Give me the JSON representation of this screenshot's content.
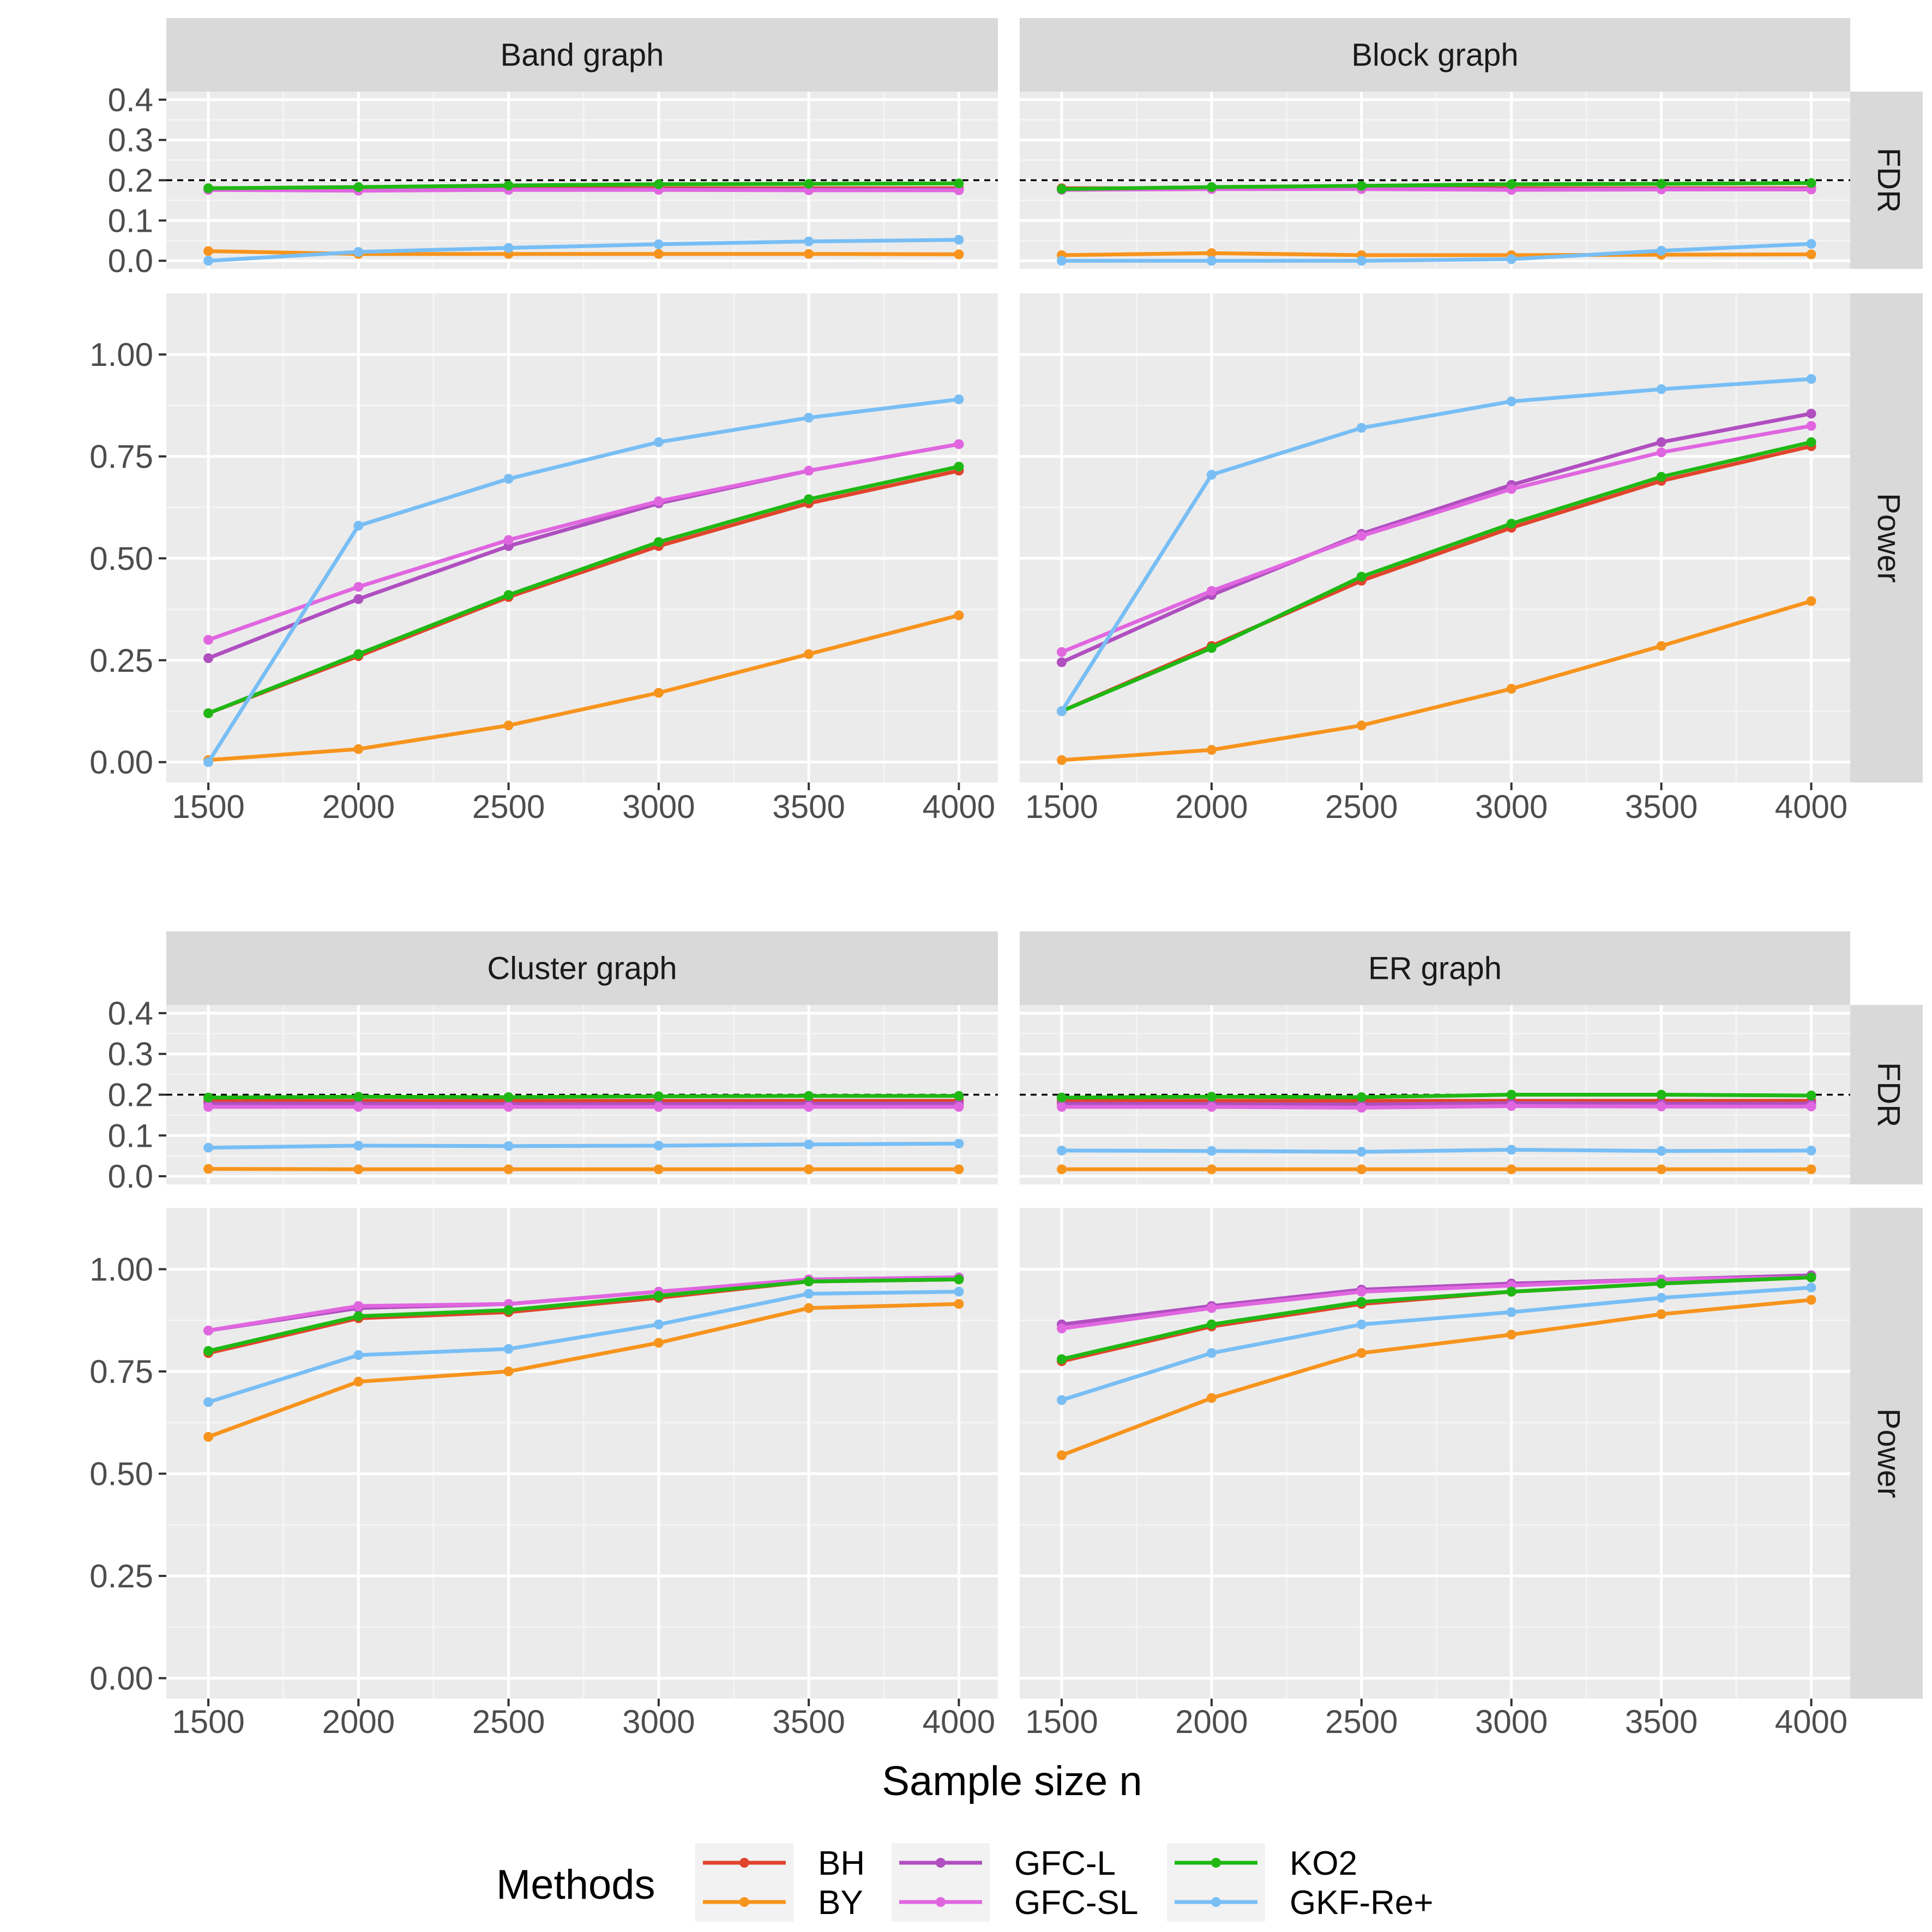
{
  "chart_data": {
    "type": "line",
    "x": [
      1500,
      2000,
      2500,
      3000,
      3500,
      4000
    ],
    "xlabel": "Sample size n",
    "x_ticks": [
      "1500",
      "2000",
      "2500",
      "3000",
      "3500",
      "4000"
    ],
    "xlim": [
      1360,
      4130
    ],
    "fdr_reference_line": 0.2,
    "rows": [
      {
        "name": "FDR",
        "ylim": [
          -0.02,
          0.42
        ],
        "ticks": [
          0,
          0.1,
          0.2,
          0.3,
          0.4
        ],
        "tick_labels": [
          "0.0",
          "0.1",
          "0.2",
          "0.3",
          "0.4"
        ]
      },
      {
        "name": "Power",
        "ylim": [
          -0.05,
          1.15
        ],
        "ticks": [
          0,
          0.25,
          0.5,
          0.75,
          1.0
        ],
        "tick_labels": [
          "0.00",
          "0.25",
          "0.50",
          "0.75",
          "1.00"
        ]
      }
    ],
    "legend": {
      "title": "Methods",
      "position": "bottom",
      "entries": [
        {
          "name": "BH",
          "color": "#E0442C"
        },
        {
          "name": "BY",
          "color": "#F7941D"
        },
        {
          "name": "GFC-L",
          "color": "#B04FC0"
        },
        {
          "name": "GFC-SL",
          "color": "#E066E0"
        },
        {
          "name": "KO2",
          "color": "#1FB814"
        },
        {
          "name": "GKF-Re+",
          "color": "#78BEF5"
        }
      ]
    },
    "panels": [
      {
        "title": "Band graph",
        "fdr": [
          {
            "name": "BH",
            "values": [
              0.18,
              0.18,
              0.18,
              0.18,
              0.18,
              0.18
            ]
          },
          {
            "name": "BY",
            "values": [
              0.024,
              0.017,
              0.017,
              0.017,
              0.017,
              0.016
            ]
          },
          {
            "name": "GFC-L",
            "values": [
              0.178,
              0.176,
              0.177,
              0.177,
              0.177,
              0.177
            ]
          },
          {
            "name": "GFC-SL",
            "values": [
              0.176,
              0.174,
              0.176,
              0.176,
              0.175,
              0.175
            ]
          },
          {
            "name": "KO2",
            "values": [
              0.18,
              0.183,
              0.187,
              0.19,
              0.191,
              0.192
            ]
          },
          {
            "name": "GKF-Re+",
            "values": [
              0.0,
              0.022,
              0.032,
              0.041,
              0.048,
              0.052
            ]
          }
        ],
        "power": [
          {
            "name": "BH",
            "values": [
              0.12,
              0.26,
              0.405,
              0.53,
              0.635,
              0.715
            ]
          },
          {
            "name": "BY",
            "values": [
              0.005,
              0.032,
              0.09,
              0.17,
              0.265,
              0.36
            ]
          },
          {
            "name": "GFC-L",
            "values": [
              0.255,
              0.4,
              0.53,
              0.635,
              0.715,
              0.78
            ]
          },
          {
            "name": "GFC-SL",
            "values": [
              0.3,
              0.43,
              0.545,
              0.64,
              0.715,
              0.78
            ]
          },
          {
            "name": "KO2",
            "values": [
              0.12,
              0.265,
              0.41,
              0.54,
              0.645,
              0.725
            ]
          },
          {
            "name": "GKF-Re+",
            "values": [
              0.0,
              0.58,
              0.695,
              0.785,
              0.845,
              0.89
            ]
          }
        ]
      },
      {
        "title": "Block graph",
        "fdr": [
          {
            "name": "BH",
            "values": [
              0.18,
              0.18,
              0.18,
              0.18,
              0.18,
              0.18
            ]
          },
          {
            "name": "BY",
            "values": [
              0.014,
              0.019,
              0.014,
              0.014,
              0.015,
              0.016
            ]
          },
          {
            "name": "GFC-L",
            "values": [
              0.178,
              0.179,
              0.18,
              0.177,
              0.178,
              0.178
            ]
          },
          {
            "name": "GFC-SL",
            "values": [
              0.176,
              0.178,
              0.178,
              0.176,
              0.177,
              0.177
            ]
          },
          {
            "name": "KO2",
            "values": [
              0.178,
              0.183,
              0.186,
              0.19,
              0.191,
              0.193
            ]
          },
          {
            "name": "GKF-Re+",
            "values": [
              0.0,
              0.0,
              0.0,
              0.004,
              0.025,
              0.042
            ]
          }
        ],
        "power": [
          {
            "name": "BH",
            "values": [
              0.125,
              0.285,
              0.445,
              0.575,
              0.69,
              0.775
            ]
          },
          {
            "name": "BY",
            "values": [
              0.005,
              0.03,
              0.09,
              0.18,
              0.285,
              0.395
            ]
          },
          {
            "name": "GFC-L",
            "values": [
              0.245,
              0.41,
              0.56,
              0.68,
              0.785,
              0.855
            ]
          },
          {
            "name": "GFC-SL",
            "values": [
              0.27,
              0.42,
              0.555,
              0.67,
              0.76,
              0.825
            ]
          },
          {
            "name": "KO2",
            "values": [
              0.125,
              0.28,
              0.455,
              0.585,
              0.7,
              0.785
            ]
          },
          {
            "name": "GKF-Re+",
            "values": [
              0.125,
              0.705,
              0.82,
              0.885,
              0.915,
              0.94
            ]
          }
        ]
      },
      {
        "title": "Cluster graph",
        "fdr": [
          {
            "name": "BH",
            "values": [
              0.185,
              0.185,
              0.185,
              0.185,
              0.185,
              0.185
            ]
          },
          {
            "name": "BY",
            "values": [
              0.018,
              0.017,
              0.017,
              0.017,
              0.017,
              0.017
            ]
          },
          {
            "name": "GFC-L",
            "values": [
              0.178,
              0.178,
              0.177,
              0.177,
              0.178,
              0.178
            ]
          },
          {
            "name": "GFC-SL",
            "values": [
              0.17,
              0.17,
              0.17,
              0.17,
              0.17,
              0.17
            ]
          },
          {
            "name": "KO2",
            "values": [
              0.193,
              0.195,
              0.194,
              0.196,
              0.197,
              0.197
            ]
          },
          {
            "name": "GKF-Re+",
            "values": [
              0.07,
              0.075,
              0.074,
              0.075,
              0.078,
              0.08
            ]
          }
        ],
        "power": [
          {
            "name": "BH",
            "values": [
              0.795,
              0.88,
              0.895,
              0.93,
              0.97,
              0.975
            ]
          },
          {
            "name": "BY",
            "values": [
              0.59,
              0.725,
              0.75,
              0.82,
              0.905,
              0.915
            ]
          },
          {
            "name": "GFC-L",
            "values": [
              0.85,
              0.905,
              0.915,
              0.945,
              0.975,
              0.98
            ]
          },
          {
            "name": "GFC-SL",
            "values": [
              0.85,
              0.91,
              0.915,
              0.945,
              0.975,
              0.98
            ]
          },
          {
            "name": "KO2",
            "values": [
              0.8,
              0.885,
              0.9,
              0.935,
              0.97,
              0.975
            ]
          },
          {
            "name": "GKF-Re+",
            "values": [
              0.675,
              0.79,
              0.805,
              0.865,
              0.94,
              0.945
            ]
          }
        ]
      },
      {
        "title": "ER graph",
        "fdr": [
          {
            "name": "BH",
            "values": [
              0.185,
              0.185,
              0.185,
              0.185,
              0.185,
              0.185
            ]
          },
          {
            "name": "BY",
            "values": [
              0.017,
              0.017,
              0.017,
              0.017,
              0.017,
              0.017
            ]
          },
          {
            "name": "GFC-L",
            "values": [
              0.178,
              0.177,
              0.176,
              0.179,
              0.178,
              0.178
            ]
          },
          {
            "name": "GFC-SL",
            "values": [
              0.17,
              0.17,
              0.168,
              0.172,
              0.171,
              0.171
            ]
          },
          {
            "name": "KO2",
            "values": [
              0.193,
              0.195,
              0.194,
              0.2,
              0.2,
              0.198
            ]
          },
          {
            "name": "GKF-Re+",
            "values": [
              0.063,
              0.062,
              0.06,
              0.065,
              0.062,
              0.063
            ]
          }
        ],
        "power": [
          {
            "name": "BH",
            "values": [
              0.775,
              0.86,
              0.915,
              0.945,
              0.965,
              0.98
            ]
          },
          {
            "name": "BY",
            "values": [
              0.545,
              0.685,
              0.795,
              0.84,
              0.89,
              0.925
            ]
          },
          {
            "name": "GFC-L",
            "values": [
              0.865,
              0.91,
              0.95,
              0.965,
              0.975,
              0.985
            ]
          },
          {
            "name": "GFC-SL",
            "values": [
              0.855,
              0.905,
              0.945,
              0.96,
              0.975,
              0.98
            ]
          },
          {
            "name": "KO2",
            "values": [
              0.78,
              0.865,
              0.92,
              0.945,
              0.965,
              0.98
            ]
          },
          {
            "name": "GKF-Re+",
            "values": [
              0.68,
              0.795,
              0.865,
              0.895,
              0.93,
              0.955
            ]
          }
        ]
      }
    ]
  }
}
